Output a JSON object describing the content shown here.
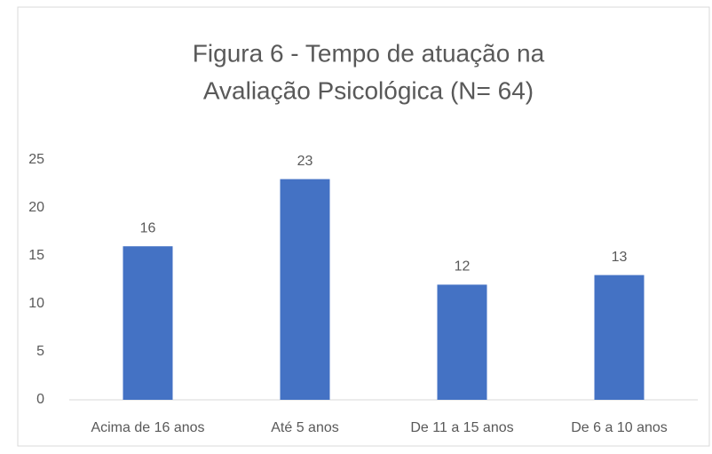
{
  "chart_data": {
    "type": "bar",
    "title": [
      "Figura 6 - Tempo de atuação na",
      "Avaliação Psicológica (N= 64)"
    ],
    "categories": [
      "Acima de 16 anos",
      "Até 5 anos",
      "De 11 a 15 anos",
      "De 6 a 10 anos"
    ],
    "values": [
      16,
      23,
      12,
      13
    ],
    "color": "#4472c4",
    "ylim": [
      0,
      25
    ],
    "yticks": [
      0,
      5,
      10,
      15,
      20,
      25
    ],
    "grid": false
  }
}
